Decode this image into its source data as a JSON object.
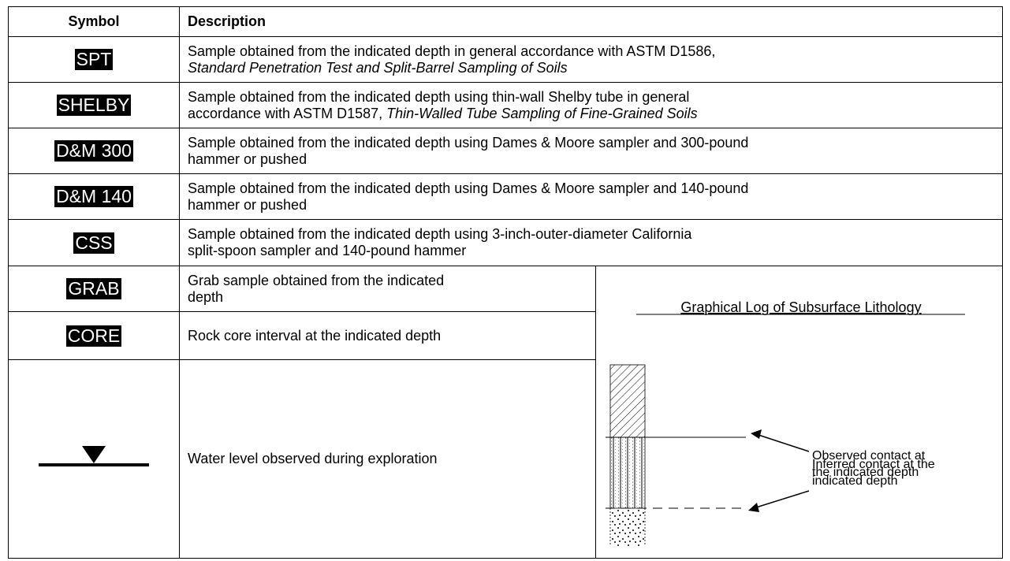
{
  "table": {
    "header": [
      "Symbol",
      "Description"
    ],
    "rows": [
      {
        "symbol": "SPT",
        "description": [
          [
            {
              "text": "Sample obtained from the indicated depth in general accordance with ASTM D1586,",
              "italic": false
            }
          ],
          [
            {
              "text": "Standard Penetration Test and Split-Barrel Sampling of Soils",
              "italic": true
            }
          ]
        ]
      },
      {
        "symbol": "SHELBY",
        "description": [
          [
            {
              "text": "Sample obtained from the indicated depth using thin-wall Shelby tube in general",
              "italic": false
            }
          ],
          [
            {
              "text": "accordance with ASTM D1587, ",
              "italic": false
            },
            {
              "text": "Thin-Walled Tube Sampling of Fine-Grained Soils",
              "italic": true
            }
          ]
        ]
      },
      {
        "symbol": "D&M 300",
        "description": [
          [
            {
              "text": "Sample obtained from the indicated depth using Dames & Moore sampler and 300-pound",
              "italic": false
            }
          ],
          [
            {
              "text": "hammer or pushed",
              "italic": false
            }
          ]
        ]
      },
      {
        "symbol": "D&M 140",
        "description": [
          [
            {
              "text": "Sample obtained from the indicated depth using Dames & Moore sampler and 140-pound",
              "italic": false
            }
          ],
          [
            {
              "text": "hammer or pushed",
              "italic": false
            }
          ]
        ]
      },
      {
        "symbol": "CSS",
        "description": [
          [
            {
              "text": "Sample obtained from the indicated depth using 3-inch-outer-diameter California",
              "italic": false
            }
          ],
          [
            {
              "text": "split-spoon sampler and 140-pound hammer",
              "italic": false
            }
          ]
        ]
      },
      {
        "symbol": "GRAB",
        "description": [
          [
            {
              "text": "Grab sample obtained from the indicated",
              "italic": false
            }
          ],
          [
            {
              "text": "depth",
              "italic": false
            }
          ]
        ]
      },
      {
        "symbol": "CORE",
        "description": [
          [
            {
              "text": "Rock core interval at the indicated depth",
              "italic": false
            }
          ]
        ]
      },
      {
        "symbol": null,
        "description": [
          [
            {
              "text": "Water level observed during exploration",
              "italic": false
            }
          ]
        ]
      }
    ]
  },
  "graphic": {
    "title": "Graphical Log of Subsurface Lithology",
    "observed": [
      "Observed contact at",
      "the indicated depth"
    ],
    "inferred": [
      "Inferred contact at the",
      "indicated depth"
    ]
  }
}
